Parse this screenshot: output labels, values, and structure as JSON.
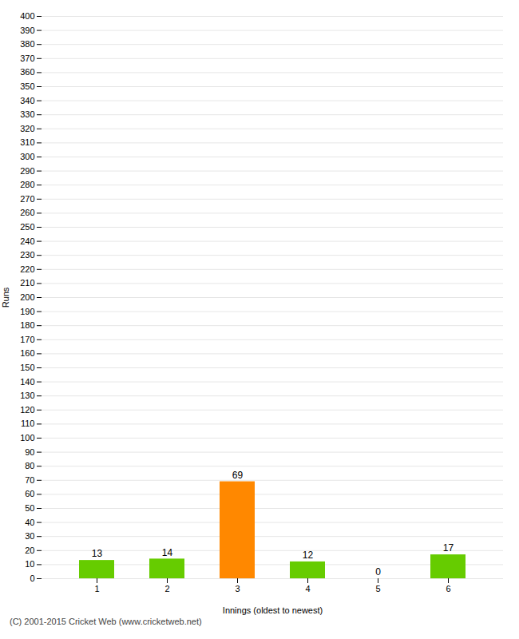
{
  "chart_data": {
    "type": "bar",
    "categories": [
      "1",
      "2",
      "3",
      "4",
      "5",
      "6"
    ],
    "values": [
      13,
      14,
      69,
      12,
      0,
      17
    ],
    "colors": [
      "#66cc00",
      "#66cc00",
      "#ff8800",
      "#66cc00",
      "#66cc00",
      "#66cc00"
    ],
    "xlabel": "Innings (oldest to newest)",
    "ylabel": "Runs",
    "ylim": [
      0,
      400
    ],
    "yticks": [
      0,
      10,
      20,
      30,
      40,
      50,
      60,
      70,
      80,
      90,
      100,
      110,
      120,
      130,
      140,
      150,
      160,
      170,
      180,
      190,
      200,
      210,
      220,
      230,
      240,
      250,
      260,
      270,
      280,
      290,
      300,
      310,
      320,
      330,
      340,
      350,
      360,
      370,
      380,
      390,
      400
    ],
    "grid": true,
    "data_labels": true,
    "caption": "(C) 2001-2015 Cricket Web (www.cricketweb.net)"
  }
}
